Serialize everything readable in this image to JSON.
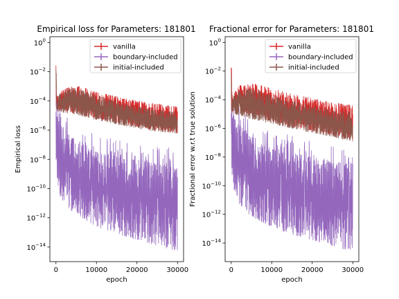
{
  "chart_data": [
    {
      "type": "line",
      "title": "Empirical loss for Parameters: 181801",
      "xlabel": "epoch",
      "ylabel": "Empirical loss",
      "yscale": "log",
      "xlim": [
        -1500,
        31500
      ],
      "ylim_log10": [
        -15,
        0.4
      ],
      "xticks": [
        0,
        10000,
        20000,
        30000
      ],
      "xtick_labels": [
        "0",
        "10000",
        "20000",
        "30000"
      ],
      "yticks_log10": [
        0,
        -2,
        -4,
        -6,
        -8,
        -10,
        -12,
        -14
      ],
      "ytick_base": "10",
      "legend_position": "upper right",
      "series": [
        {
          "name": "vanilla",
          "color": "#d62728",
          "x": [
            0,
            200,
            500,
            1000,
            2000,
            4000,
            6000,
            10000,
            15000,
            20000,
            25000,
            30000
          ],
          "upper_log10": [
            -0.2,
            -3.6,
            -3.7,
            -3.4,
            -3.2,
            -3.0,
            -3.0,
            -3.4,
            -3.7,
            -4.0,
            -4.2,
            -4.4
          ],
          "lower_log10": [
            -4.5,
            -4.6,
            -4.6,
            -4.6,
            -4.7,
            -4.8,
            -4.9,
            -5.2,
            -5.5,
            -5.8,
            -6.0,
            -6.2
          ]
        },
        {
          "name": "boundary-included",
          "color": "#9467bd",
          "x": [
            0,
            200,
            500,
            1000,
            2000,
            4000,
            6000,
            10000,
            15000,
            20000,
            25000,
            30000
          ],
          "upper_log10": [
            -3.3,
            -4.5,
            -5.2,
            -5.6,
            -6.0,
            -6.5,
            -7.0,
            -7.5,
            -7.8,
            -8.0,
            -8.3,
            -8.5
          ],
          "lower_log10": [
            -7.8,
            -9.0,
            -9.8,
            -10.5,
            -11.0,
            -11.6,
            -12.0,
            -12.6,
            -13.1,
            -13.5,
            -13.9,
            -14.3
          ]
        },
        {
          "name": "initial-included",
          "color": "#8c564b",
          "x": [
            0,
            200,
            500,
            1000,
            2000,
            4000,
            6000,
            10000,
            15000,
            20000,
            25000,
            30000
          ],
          "upper_log10": [
            -0.5,
            -4.0,
            -3.7,
            -3.5,
            -3.3,
            -3.1,
            -3.2,
            -3.6,
            -4.0,
            -4.4,
            -4.6,
            -4.8
          ],
          "lower_log10": [
            -4.5,
            -4.7,
            -4.7,
            -4.7,
            -4.8,
            -4.9,
            -5.0,
            -5.3,
            -5.6,
            -5.9,
            -6.1,
            -6.2
          ]
        }
      ]
    },
    {
      "type": "line",
      "title": "Fractional error for Parameters: 181801",
      "xlabel": "epoch",
      "ylabel": "Fractional error w.r.t true solution",
      "yscale": "log",
      "xlim": [
        -1500,
        31500
      ],
      "ylim_log10": [
        -15.3,
        0.4
      ],
      "xticks": [
        0,
        10000,
        20000,
        30000
      ],
      "xtick_labels": [
        "0",
        "10000",
        "20000",
        "30000"
      ],
      "yticks_log10": [
        0,
        -2,
        -4,
        -6,
        -8,
        -10,
        -12,
        -14
      ],
      "ytick_base": "10",
      "legend_position": "upper right",
      "series": [
        {
          "name": "vanilla",
          "color": "#d62728",
          "x": [
            0,
            200,
            500,
            1000,
            2000,
            4000,
            6000,
            10000,
            15000,
            20000,
            25000,
            30000
          ],
          "upper_log10": [
            -0.2,
            -3.7,
            -3.6,
            -3.3,
            -3.0,
            -2.9,
            -2.9,
            -3.2,
            -3.6,
            -3.9,
            -4.2,
            -4.4
          ],
          "lower_log10": [
            -4.7,
            -4.8,
            -4.8,
            -4.8,
            -4.9,
            -5.0,
            -5.2,
            -5.5,
            -5.9,
            -6.2,
            -6.5,
            -6.8
          ]
        },
        {
          "name": "boundary-included",
          "color": "#9467bd",
          "x": [
            0,
            200,
            500,
            1000,
            2000,
            4000,
            6000,
            10000,
            15000,
            20000,
            25000,
            30000
          ],
          "upper_log10": [
            -3.3,
            -4.5,
            -5.0,
            -5.4,
            -5.8,
            -6.3,
            -6.8,
            -7.4,
            -7.7,
            -8.0,
            -8.3,
            -8.5
          ],
          "lower_log10": [
            -8.0,
            -9.2,
            -10.0,
            -10.7,
            -11.3,
            -11.9,
            -12.3,
            -12.9,
            -13.4,
            -13.8,
            -14.2,
            -14.6
          ]
        },
        {
          "name": "initial-included",
          "color": "#8c564b",
          "x": [
            0,
            200,
            500,
            1000,
            2000,
            4000,
            6000,
            10000,
            15000,
            20000,
            25000,
            30000
          ],
          "upper_log10": [
            -0.6,
            -4.1,
            -3.8,
            -3.6,
            -3.4,
            -3.2,
            -3.3,
            -3.7,
            -4.1,
            -4.4,
            -4.7,
            -4.9
          ],
          "lower_log10": [
            -4.8,
            -5.0,
            -5.0,
            -5.0,
            -5.1,
            -5.3,
            -5.4,
            -5.7,
            -6.0,
            -6.3,
            -6.6,
            -6.9
          ]
        }
      ]
    }
  ]
}
